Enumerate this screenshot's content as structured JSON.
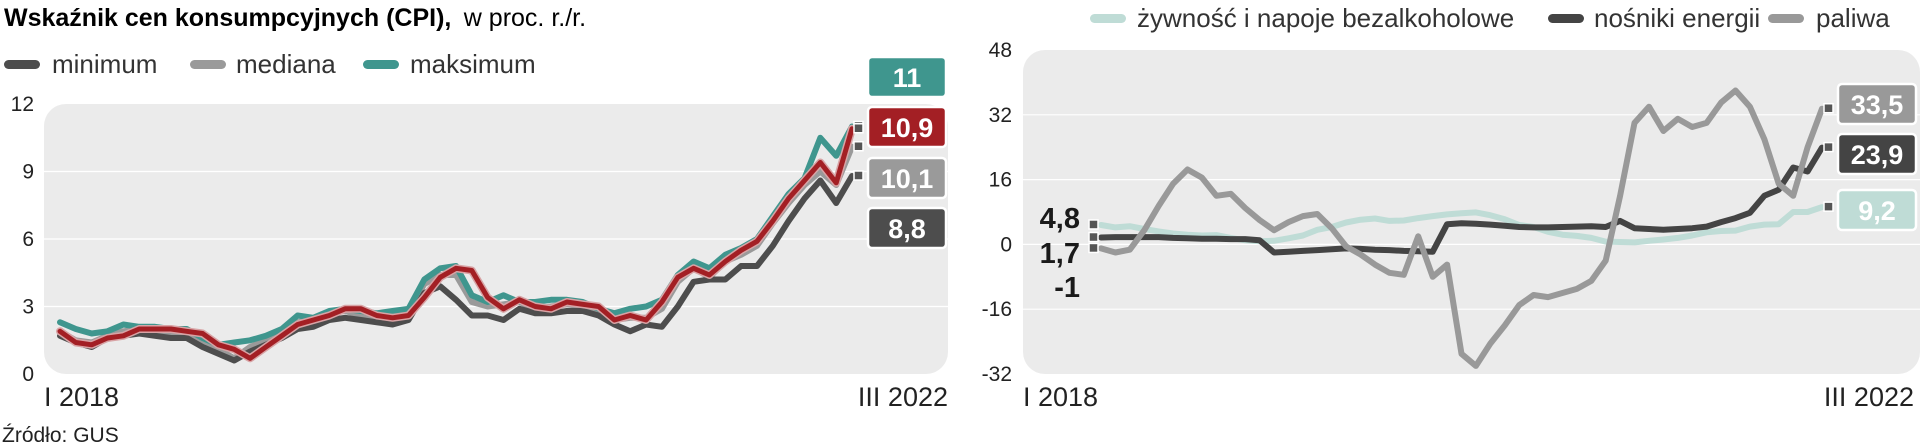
{
  "title": {
    "bold": "Wskaźnik cen konsumpcyjnych (CPI),",
    "regular": "w  proc. r./r."
  },
  "source": "Źródło: GUS",
  "colors": {
    "minimum": "#4d4d4d",
    "mediana": "#9a9a9a",
    "maksimum": "#3f968e",
    "cpi": "#a31f24",
    "food": "#bfdcd6",
    "energy": "#444444",
    "fuel": "#999999",
    "plot_bg": "#ebebeb"
  },
  "chart_data": [
    {
      "type": "line",
      "ylim": [
        0,
        12
      ],
      "yticks": [
        "0",
        "3",
        "6",
        "9",
        "12"
      ],
      "x_start_label": "I 2018",
      "x_end_label": "III 2022",
      "legend": [
        "minimum",
        "mediana",
        "maksimum"
      ],
      "x": [
        "2018-01",
        "2018-02",
        "2018-03",
        "2018-04",
        "2018-05",
        "2018-06",
        "2018-07",
        "2018-08",
        "2018-09",
        "2018-10",
        "2018-11",
        "2018-12",
        "2019-01",
        "2019-02",
        "2019-03",
        "2019-04",
        "2019-05",
        "2019-06",
        "2019-07",
        "2019-08",
        "2019-09",
        "2019-10",
        "2019-11",
        "2019-12",
        "2020-01",
        "2020-02",
        "2020-03",
        "2020-04",
        "2020-05",
        "2020-06",
        "2020-07",
        "2020-08",
        "2020-09",
        "2020-10",
        "2020-11",
        "2020-12",
        "2021-01",
        "2021-02",
        "2021-03",
        "2021-04",
        "2021-05",
        "2021-06",
        "2021-07",
        "2021-08",
        "2021-09",
        "2021-10",
        "2021-11",
        "2021-12",
        "2022-01",
        "2022-02",
        "2022-03"
      ],
      "series": [
        {
          "name": "minimum",
          "values": [
            1.7,
            1.4,
            1.2,
            1.6,
            1.7,
            1.8,
            1.7,
            1.6,
            1.6,
            1.2,
            0.9,
            0.6,
            1.0,
            1.3,
            1.6,
            2.0,
            2.1,
            2.4,
            2.5,
            2.4,
            2.3,
            2.2,
            2.4,
            3.6,
            3.9,
            3.3,
            2.6,
            2.6,
            2.4,
            2.9,
            2.7,
            2.7,
            2.8,
            2.8,
            2.6,
            2.2,
            1.9,
            2.2,
            2.1,
            3.0,
            4.1,
            4.2,
            4.2,
            4.8,
            4.8,
            5.7,
            6.8,
            7.8,
            8.6,
            7.6,
            8.8
          ]
        },
        {
          "name": "mediana",
          "values": [
            1.9,
            1.5,
            1.4,
            1.7,
            1.9,
            2.0,
            1.9,
            1.8,
            1.8,
            1.4,
            1.1,
            0.7,
            1.2,
            1.5,
            1.9,
            2.3,
            2.4,
            2.7,
            2.8,
            2.6,
            2.5,
            2.6,
            2.8,
            4.0,
            4.4,
            4.4,
            3.2,
            3.0,
            3.1,
            3.2,
            2.9,
            3.0,
            3.1,
            3.0,
            2.8,
            2.4,
            2.5,
            2.5,
            2.9,
            4.1,
            4.7,
            4.3,
            5.0,
            5.3,
            5.7,
            6.7,
            7.6,
            8.4,
            9.0,
            8.4,
            10.1
          ]
        },
        {
          "name": "maksimum",
          "values": [
            2.3,
            2.0,
            1.8,
            1.9,
            2.2,
            2.1,
            2.1,
            2.0,
            2.0,
            1.6,
            1.3,
            1.4,
            1.5,
            1.7,
            2.0,
            2.6,
            2.5,
            2.8,
            2.9,
            2.8,
            2.7,
            2.8,
            2.9,
            4.2,
            4.7,
            4.8,
            3.5,
            3.2,
            3.5,
            3.2,
            3.2,
            3.3,
            3.3,
            3.2,
            2.9,
            2.7,
            2.9,
            3.0,
            3.3,
            4.4,
            5.0,
            4.7,
            5.3,
            5.6,
            6.0,
            7.0,
            8.0,
            8.7,
            10.5,
            9.7,
            11.0
          ]
        },
        {
          "name": "CPI",
          "values": [
            1.9,
            1.4,
            1.3,
            1.6,
            1.7,
            2.0,
            2.0,
            2.0,
            1.9,
            1.8,
            1.3,
            1.1,
            0.7,
            1.2,
            1.7,
            2.2,
            2.4,
            2.6,
            2.9,
            2.9,
            2.6,
            2.5,
            2.6,
            3.4,
            4.3,
            4.7,
            4.6,
            3.4,
            2.9,
            3.3,
            3.0,
            2.9,
            3.2,
            3.1,
            3.0,
            2.4,
            2.6,
            2.4,
            3.2,
            4.3,
            4.7,
            4.4,
            5.0,
            5.5,
            5.9,
            6.8,
            7.8,
            8.6,
            9.4,
            8.5,
            10.9
          ]
        }
      ],
      "labels": [
        {
          "text": "11",
          "series": "maksimum"
        },
        {
          "text": "10,9",
          "series": "CPI"
        },
        {
          "text": "10,1",
          "series": "mediana"
        },
        {
          "text": "8,8",
          "series": "minimum"
        }
      ]
    },
    {
      "type": "line",
      "ylim": [
        -32,
        48
      ],
      "yticks": [
        "-32",
        "-16",
        "0",
        "16",
        "32",
        "48"
      ],
      "x_start_label": "I 2018",
      "x_end_label": "III 2022",
      "legend": [
        "żywność i napoje bezalkoholowe",
        "nośniki energii",
        "paliwa"
      ],
      "x": [
        "2018-01",
        "2018-02",
        "2018-03",
        "2018-04",
        "2018-05",
        "2018-06",
        "2018-07",
        "2018-08",
        "2018-09",
        "2018-10",
        "2018-11",
        "2018-12",
        "2019-01",
        "2019-02",
        "2019-03",
        "2019-04",
        "2019-05",
        "2019-06",
        "2019-07",
        "2019-08",
        "2019-09",
        "2019-10",
        "2019-11",
        "2019-12",
        "2020-01",
        "2020-02",
        "2020-03",
        "2020-04",
        "2020-05",
        "2020-06",
        "2020-07",
        "2020-08",
        "2020-09",
        "2020-10",
        "2020-11",
        "2020-12",
        "2021-01",
        "2021-02",
        "2021-03",
        "2021-04",
        "2021-05",
        "2021-06",
        "2021-07",
        "2021-08",
        "2021-09",
        "2021-10",
        "2021-11",
        "2021-12",
        "2022-01",
        "2022-02",
        "2022-03"
      ],
      "series": [
        {
          "name": "żywność i napoje bezalkoholowe",
          "values": [
            4.8,
            4.2,
            4.5,
            3.8,
            3.2,
            2.7,
            2.4,
            2.2,
            2.3,
            1.6,
            1.0,
            0.8,
            0.9,
            1.5,
            2.2,
            3.6,
            4.3,
            5.4,
            6.1,
            6.4,
            5.8,
            5.9,
            6.5,
            7.0,
            7.4,
            7.7,
            7.9,
            7.2,
            6.2,
            4.8,
            4.3,
            3.1,
            2.4,
            2.1,
            1.6,
            0.7,
            0.6,
            0.5,
            0.9,
            1.2,
            1.6,
            2.2,
            3.0,
            3.3,
            3.4,
            4.4,
            4.9,
            5.0,
            8.0,
            8.0,
            9.2
          ]
        },
        {
          "name": "nośniki energii",
          "values": [
            1.7,
            1.8,
            1.8,
            1.8,
            1.8,
            1.6,
            1.5,
            1.4,
            1.4,
            1.3,
            1.3,
            1.0,
            -2.0,
            -1.8,
            -1.6,
            -1.4,
            -1.2,
            -1.0,
            -1.1,
            -1.3,
            -1.4,
            -1.6,
            -1.7,
            -1.8,
            5.0,
            5.2,
            5.1,
            4.9,
            4.6,
            4.3,
            4.2,
            4.2,
            4.3,
            4.4,
            4.5,
            4.3,
            5.8,
            4.0,
            3.8,
            3.6,
            3.8,
            4.0,
            4.4,
            5.5,
            6.5,
            7.8,
            12.0,
            13.5,
            19.0,
            18.0,
            23.9
          ]
        },
        {
          "name": "paliwa",
          "values": [
            -1.0,
            -2.0,
            -1.3,
            3.5,
            9.5,
            15.0,
            18.5,
            16.5,
            12.0,
            12.5,
            9.0,
            6.0,
            3.5,
            5.5,
            7.0,
            7.5,
            4.0,
            -0.5,
            -2.5,
            -5.0,
            -7.0,
            -7.5,
            2.0,
            -8.0,
            -5.0,
            -27.0,
            -30.0,
            -24.5,
            -20.0,
            -15.0,
            -12.5,
            -13.0,
            -12.0,
            -11.0,
            -9.0,
            -4.0,
            12.0,
            30.0,
            34.0,
            28.0,
            31.0,
            29.0,
            30.0,
            35.0,
            38.0,
            34.0,
            26.0,
            15.0,
            12.0,
            24.0,
            33.5
          ]
        }
      ],
      "labels": [
        {
          "text": "33,5",
          "series": "paliwa"
        },
        {
          "text": "23,9",
          "series": "nośniki energii"
        },
        {
          "text": "9,2",
          "series": "żywność i napoje bezalkoholowe"
        }
      ],
      "start_labels": [
        "4,8",
        "1,7",
        "-1"
      ]
    }
  ]
}
